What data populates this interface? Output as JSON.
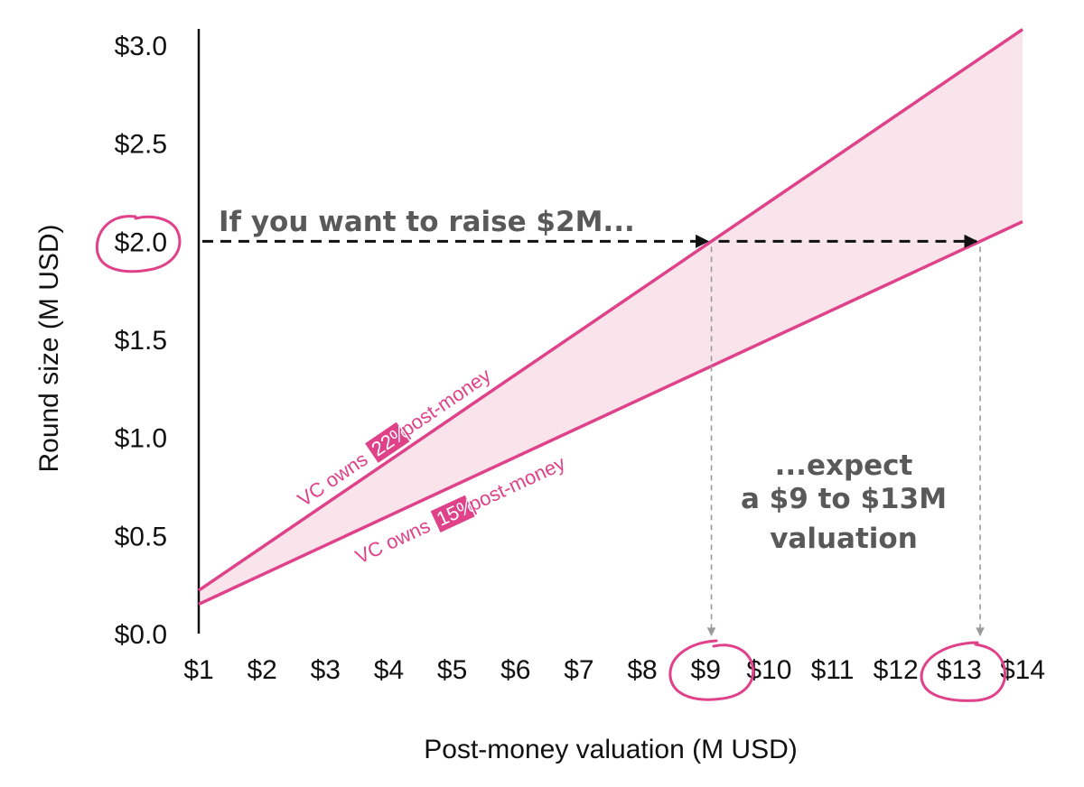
{
  "chart_data": {
    "type": "line",
    "x": [
      1,
      14
    ],
    "series": [
      {
        "label": "VC owns 22% post-money",
        "ownership": 0.22,
        "values": [
          0.22,
          3.08
        ]
      },
      {
        "label": "VC owns 15% post-money",
        "ownership": 0.15,
        "values": [
          0.15,
          2.1
        ]
      }
    ],
    "fill_between": true,
    "xlabel": "Post-money valuation (M USD)",
    "ylabel": "Round size (M USD)",
    "xlim": [
      1,
      14
    ],
    "ylim": [
      0,
      3.0
    ],
    "x_ticks": [
      "$1",
      "$2",
      "$3",
      "$4",
      "$5",
      "$6",
      "$7",
      "$8",
      "$9",
      "$10",
      "$11",
      "$12",
      "$13",
      "$14"
    ],
    "y_ticks": [
      "$0.0",
      "$0.5",
      "$1.0",
      "$1.5",
      "$2.0",
      "$2.5",
      "$3.0"
    ],
    "grid": false,
    "annotations": {
      "raise_text": "If you want to raise $2M...",
      "raise_value": 2.0,
      "intersections": [
        9.09,
        13.33
      ],
      "expect_lines": [
        "...expect",
        "a $9 to $13M",
        "valuation"
      ],
      "highlighted_ticks": [
        "$2.0",
        "$9",
        "$13"
      ]
    },
    "line_labels": {
      "upper": {
        "prefix": "VC owns ",
        "pct": "22%",
        "suffix": " post-money"
      },
      "lower": {
        "prefix": "VC owns ",
        "pct": "15%",
        "suffix": " post-money"
      }
    }
  },
  "colors": {
    "accent": "#e0428a",
    "fill": "#f8e4ea",
    "callout_text": "#595959",
    "arrow": "#111111",
    "drop_line": "#9a9a9a"
  }
}
